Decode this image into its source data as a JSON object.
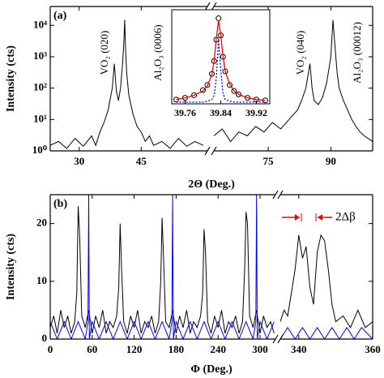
{
  "chart_data": [
    {
      "type": "line",
      "label": "(a)",
      "y_label": "Intensity (cts)",
      "x_label": "2Θ (Deg.)",
      "log_y": true,
      "ylim": [
        1,
        40000
      ],
      "yticks": [
        {
          "value": 1,
          "label": "10⁰"
        },
        {
          "value": 10,
          "label": "10¹"
        },
        {
          "value": 100,
          "label": "10²"
        },
        {
          "value": 1000,
          "label": "10³"
        },
        {
          "value": 10000,
          "label": "10⁴"
        }
      ],
      "annotations": [
        "VO₂ (020)",
        "Al₂O₃ (0006)",
        "VO₂ (040)",
        "Al₂O₃ (00012)"
      ],
      "segments": [
        {
          "xlim": [
            23,
            61
          ],
          "xticks": [
            30,
            45
          ],
          "series": [
            {
              "color": "#000000",
              "x": [
                23,
                25,
                27,
                29,
                31,
                33,
                34,
                35,
                36,
                37,
                38,
                38.5,
                39,
                39.5,
                40,
                40.5,
                40.8,
                41,
                41.2,
                41.5,
                42,
                43,
                44,
                45,
                46,
                47,
                48,
                50,
                52,
                54,
                56,
                58,
                60
              ],
              "values": [
                1.5,
                2,
                1.2,
                2.5,
                1.4,
                3,
                1.5,
                4,
                8,
                20,
                100,
                600,
                80,
                40,
                100,
                600,
                3000,
                15000,
                2000,
                300,
                60,
                15,
                6,
                4,
                2,
                3,
                1.5,
                2,
                1.2,
                2.5,
                1.4,
                2,
                1.5
              ]
            }
          ]
        },
        {
          "xlim": [
            62,
            100
          ],
          "xticks": [
            75,
            90
          ],
          "series": [
            {
              "color": "#000000",
              "x": [
                62,
                64,
                66,
                68,
                70,
                72,
                74,
                76,
                78,
                80,
                82,
                83,
                84,
                85,
                85.5,
                86,
                87,
                88,
                89,
                90,
                90.5,
                91,
                91.5,
                92,
                93,
                94,
                95,
                96,
                97,
                98,
                100
              ],
              "values": [
                3,
                5,
                2,
                4,
                3,
                6,
                4,
                8,
                5,
                10,
                20,
                40,
                100,
                600,
                100,
                40,
                30,
                50,
                150,
                1000,
                15000,
                2000,
                300,
                100,
                40,
                20,
                10,
                6,
                4,
                3,
                2
              ]
            }
          ]
        }
      ],
      "inset": {
        "type": "line",
        "xlim": [
          39.73,
          39.95
        ],
        "xticks": [
          39.76,
          39.84,
          39.92
        ],
        "ylim": [
          0,
          1.1
        ],
        "x": [
          39.74,
          39.76,
          39.78,
          39.8,
          39.81,
          39.82,
          39.825,
          39.83,
          39.835,
          39.84,
          39.845,
          39.85,
          39.86,
          39.87,
          39.88,
          39.9,
          39.92,
          39.94
        ],
        "series": [
          {
            "color": "#000000",
            "marker": "circle",
            "values": [
              0.05,
              0.07,
              0.1,
              0.16,
              0.22,
              0.35,
              0.5,
              0.75,
              1,
              0.8,
              0.55,
              0.38,
              0.22,
              0.15,
              0.11,
              0.07,
              0.05,
              0.04
            ]
          },
          {
            "color": "#ff0000",
            "values": [
              0.05,
              0.07,
              0.1,
              0.15,
              0.21,
              0.34,
              0.5,
              0.76,
              0.98,
              0.8,
              0.56,
              0.38,
              0.23,
              0.15,
              0.11,
              0.07,
              0.05,
              0.04
            ]
          },
          {
            "color": "#0000ff",
            "dashed": true,
            "values": [
              0.02,
              0.02,
              0.02,
              0.02,
              0.03,
              0.05,
              0.1,
              0.3,
              0.75,
              0.4,
              0.12,
              0.05,
              0.03,
              0.02,
              0.02,
              0.02,
              0.02,
              0.02
            ]
          }
        ]
      }
    },
    {
      "type": "line",
      "label": "(b)",
      "y_label": "Intensity (cts)",
      "x_label": "Φ (Deg.)",
      "log_y": false,
      "ylim": [
        0,
        25
      ],
      "yticks": [
        0,
        10,
        20
      ],
      "annotations": [
        "2Δβ"
      ],
      "segments": [
        {
          "xlim": [
            0,
            322
          ],
          "xticks": [
            0,
            60,
            120,
            180,
            240,
            300
          ],
          "series": [
            {
              "color": "#000000",
              "x": [
                0,
                5,
                10,
                15,
                20,
                25,
                30,
                35,
                38,
                40,
                42,
                45,
                50,
                55,
                60,
                65,
                70,
                75,
                80,
                85,
                90,
                95,
                98,
                100,
                102,
                105,
                110,
                115,
                120,
                125,
                130,
                135,
                140,
                145,
                150,
                155,
                158,
                160,
                162,
                165,
                170,
                175,
                180,
                185,
                190,
                195,
                200,
                205,
                210,
                215,
                218,
                220,
                222,
                225,
                230,
                235,
                240,
                245,
                250,
                255,
                260,
                265,
                270,
                275,
                278,
                280,
                282,
                285,
                290,
                295,
                300,
                305,
                310,
                315,
                320
              ],
              "values": [
                2,
                4,
                1,
                5,
                2,
                4,
                1,
                3,
                8,
                23,
                18,
                4,
                2,
                5,
                1,
                4,
                2,
                5,
                1,
                3,
                2,
                4,
                9,
                20,
                12,
                3,
                1,
                4,
                2,
                5,
                1,
                3,
                2,
                4,
                1,
                3,
                10,
                21,
                14,
                3,
                2,
                5,
                1,
                4,
                2,
                5,
                1,
                3,
                2,
                4,
                8,
                19,
                15,
                3,
                1,
                4,
                2,
                5,
                1,
                3,
                2,
                4,
                1,
                3,
                12,
                22,
                20,
                4,
                2,
                5,
                1,
                4,
                2,
                3,
                1
              ]
            },
            {
              "color": "#0000ff",
              "x": [
                0,
                10,
                20,
                30,
                40,
                50,
                54,
                55,
                56,
                60,
                70,
                80,
                90,
                100,
                110,
                120,
                130,
                140,
                150,
                160,
                170,
                174,
                175,
                176,
                180,
                190,
                200,
                210,
                220,
                230,
                240,
                250,
                260,
                270,
                280,
                290,
                294,
                295,
                296,
                300,
                310,
                320
              ],
              "values": [
                3,
                0,
                3,
                0,
                3,
                0,
                3,
                25,
                0,
                3,
                0,
                3,
                0,
                3,
                0,
                3,
                0,
                3,
                0,
                3,
                0,
                3,
                25,
                0,
                3,
                0,
                3,
                0,
                3,
                0,
                3,
                0,
                3,
                0,
                3,
                0,
                3,
                25,
                0,
                3,
                0,
                3
              ]
            }
          ]
        },
        {
          "xlim": [
            335,
            360
          ],
          "xticks": [
            340,
            360
          ],
          "series": [
            {
              "color": "#000000",
              "x": [
                335,
                336,
                337,
                338,
                339,
                340,
                341,
                342,
                343,
                344,
                345,
                346,
                347,
                348,
                349,
                350,
                352,
                354,
                356,
                358,
                360
              ],
              "values": [
                3,
                5,
                4,
                8,
                12,
                18,
                14,
                16,
                9,
                6,
                15,
                18,
                17,
                12,
                6,
                3,
                4,
                2,
                5,
                2,
                3
              ]
            },
            {
              "color": "#0000ff",
              "x": [
                335,
                337,
                339,
                341,
                343,
                345,
                347,
                349,
                351,
                353,
                355,
                357,
                360
              ],
              "values": [
                0,
                2,
                0,
                2,
                0,
                2,
                0,
                2,
                0,
                2,
                0,
                2,
                0
              ]
            }
          ]
        }
      ]
    }
  ]
}
